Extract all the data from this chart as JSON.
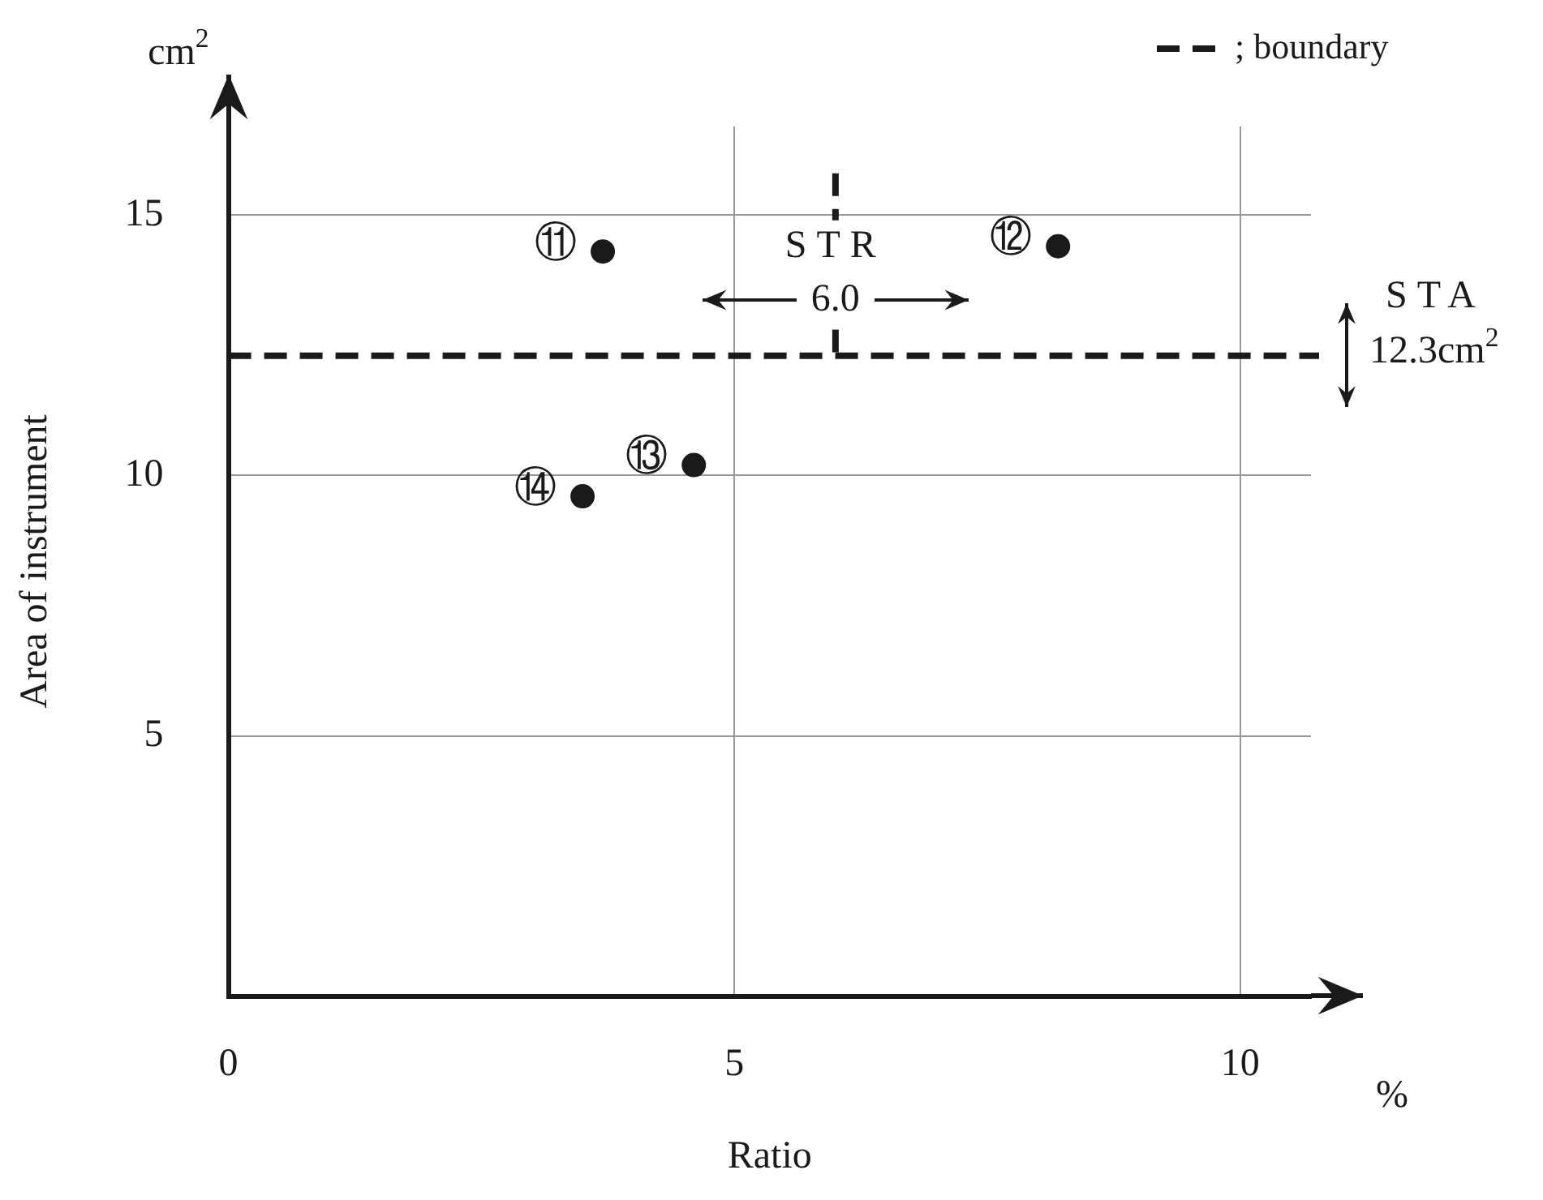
{
  "chart_data": {
    "type": "scatter",
    "xlabel": "Ratio",
    "ylabel": "Area of instrument",
    "series": [
      {
        "type": "scatter",
        "x": [
          3.7,
          8.2,
          4.6,
          3.5
        ],
        "values": [
          14.3,
          14.4,
          10.2,
          9.6
        ],
        "color": "#1a1a1a",
        "marker": "circle"
      },
      {
        "type": "line",
        "x": [
          6,
          6
        ],
        "values": [
          15.8,
          14.9
        ],
        "color": "#1a1a1a",
        "line_style": "dashed",
        "marker": "none"
      },
      {
        "type": "line",
        "x": [
          6,
          6
        ],
        "values": [
          12.8,
          12.3
        ],
        "color": "#1a1a1a",
        "line_style": "dashed",
        "marker": "none"
      }
    ],
    "xlim": [
      0,
      10.7
    ],
    "ylim": [
      0,
      16.7
    ],
    "xticks": [
      0,
      5,
      10
    ],
    "yticks": [
      5,
      10,
      15
    ],
    "grid": true,
    "legend": "top right",
    "ref_lines": [
      {
        "axis": "y",
        "value": 12.3,
        "label": "; boundary",
        "color": "#1a1a1a",
        "line_style": "dashed"
      }
    ],
    "annotations": [
      "cm$^{2}$",
      "%",
      "STA",
      "12.3cm$^{2}$",
      "STR",
      "6.0",
      {
        "text": "⑪",
        "x": 3.7,
        "y": 14.3
      },
      {
        "text": "⑫",
        "x": 8.2,
        "y": 14.4
      },
      {
        "text": "⑬",
        "x": 4.6,
        "y": 10.2
      },
      {
        "text": "⑭",
        "x": 3.5,
        "y": 9.6
      }
    ]
  }
}
